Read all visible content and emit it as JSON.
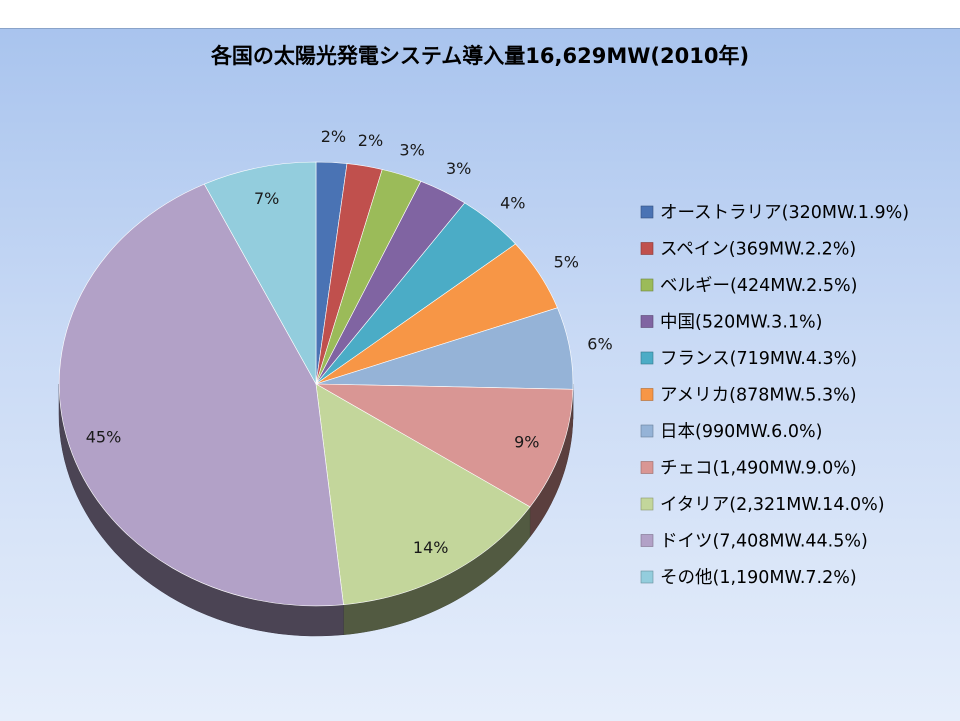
{
  "chart_data": {
    "type": "pie",
    "title": "各国の太陽光発電システム導入量16,629MW(2010年)",
    "slices": [
      {
        "label": "オーストラリア(320MW.1.9%)",
        "value": 320,
        "percent_label": "2%",
        "color": "#4a73b4"
      },
      {
        "label": "スペイン(369MW.2.2%)",
        "value": 369,
        "percent_label": "2%",
        "color": "#c0504d"
      },
      {
        "label": "ベルギー(424MW.2.5%)",
        "value": 424,
        "percent_label": "3%",
        "color": "#9bbb59"
      },
      {
        "label": "中国(520MW.3.1%)",
        "value": 520,
        "percent_label": "3%",
        "color": "#8064a2"
      },
      {
        "label": "フランス(719MW.4.3%)",
        "value": 719,
        "percent_label": "4%",
        "color": "#4bacc6"
      },
      {
        "label": "アメリカ(878MW.5.3%)",
        "value": 878,
        "percent_label": "5%",
        "color": "#f79646"
      },
      {
        "label": "日本(990MW.6.0%)",
        "value": 990,
        "percent_label": "6%",
        "color": "#95b3d7"
      },
      {
        "label": "チェコ(1,490MW.9.0%)",
        "value": 1490,
        "percent_label": "9%",
        "color": "#d99694"
      },
      {
        "label": "イタリア(2,321MW.14.0%)",
        "value": 2321,
        "percent_label": "14%",
        "color": "#c3d69b"
      },
      {
        "label": "ドイツ(7,408MW.44.5%)",
        "value": 7408,
        "percent_label": "45%",
        "color": "#b2a1c7"
      },
      {
        "label": "その他(1,190MW.7.2%)",
        "value": 1190,
        "percent_label": "7%",
        "color": "#93cddd"
      }
    ],
    "legend_position": "right"
  }
}
